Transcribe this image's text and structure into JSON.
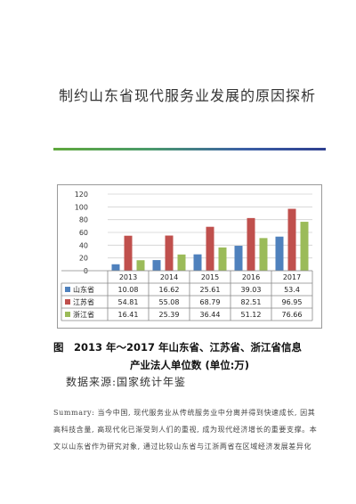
{
  "document": {
    "title": "制约山东省现代服务业发展的原因探析",
    "figure_caption_line1": "图　2013 年～2017 年山东省、江苏省、浙江省信息",
    "figure_caption_line2": "产业法人单位数 (单位:万)",
    "source": "数据来源:国家统计年鉴",
    "summary": "Summary: 当今中国, 现代服务业从传统服务业中分离并得到快速成长, 因其高科技含量, 高现代化已渐受到人们的重视, 成为现代经济增长的重要支撑。本文以山东省作为研究对象, 通过比较山东省与江浙两省在区域经济发展差异化"
  },
  "chart_data": {
    "type": "bar",
    "categories": [
      "2013",
      "2014",
      "2015",
      "2016",
      "2017"
    ],
    "series": [
      {
        "name": "山东省",
        "color": "#4f81bd",
        "values": [
          10.08,
          16.62,
          25.61,
          39.03,
          53.4
        ],
        "labels": [
          "10.08",
          "16.62",
          "25.61",
          "39.03",
          "53.4"
        ]
      },
      {
        "name": "江苏省",
        "color": "#c0504d",
        "values": [
          54.81,
          55.08,
          68.79,
          82.51,
          96.95
        ],
        "labels": [
          "54.81",
          "55.08",
          "68.79",
          "82.51",
          "96.95"
        ]
      },
      {
        "name": "浙江省",
        "color": "#9bbb59",
        "values": [
          16.41,
          25.39,
          36.44,
          51.12,
          76.66
        ],
        "labels": [
          "16.41",
          "25.39",
          "36.44",
          "51.12",
          "76.66"
        ]
      }
    ],
    "ylim": [
      0,
      120
    ],
    "yticks": [
      "0",
      "20",
      "40",
      "60",
      "80",
      "100",
      "120"
    ],
    "grid": true,
    "legend": "data-table"
  }
}
